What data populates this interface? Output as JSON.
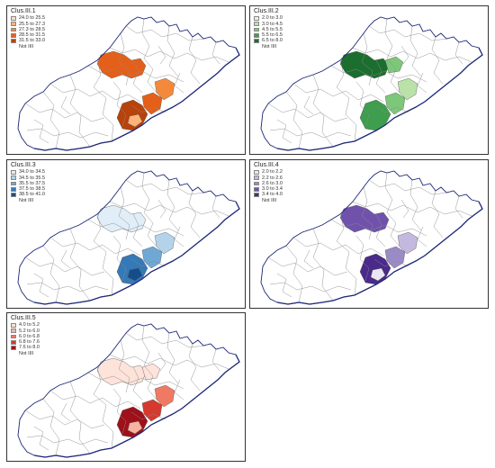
{
  "panels": [
    {
      "title": "Clus.III.1",
      "ramp": "orange",
      "legend": [
        {
          "label": "24.0 to 25.5",
          "color": "#fde0c2"
        },
        {
          "label": "25.5 to 27.3",
          "color": "#fbb47a"
        },
        {
          "label": "27.3 to 28.5",
          "color": "#f5893b"
        },
        {
          "label": "28.5 to 31.5",
          "color": "#e4601a"
        },
        {
          "label": "31.5 to 33.0",
          "color": "#b8420b"
        }
      ],
      "missing_label": "Not IIII",
      "zones": [
        {
          "area": "north",
          "class": 3
        },
        {
          "area": "coast-1",
          "class": 4
        },
        {
          "area": "coast-2",
          "class": 3
        },
        {
          "area": "coast-3",
          "class": 2
        },
        {
          "area": "coast-4",
          "class": 1
        }
      ]
    },
    {
      "title": "Clus.III.2",
      "ramp": "green",
      "legend": [
        {
          "label": "2.0 to 3.0",
          "color": "#e6f4e0"
        },
        {
          "label": "3.0 to 4.5",
          "color": "#b9e1a8"
        },
        {
          "label": "4.5 to 5.5",
          "color": "#7dc77a"
        },
        {
          "label": "5.5 to 6.5",
          "color": "#3e9e4d"
        },
        {
          "label": "6.5 to 8.0",
          "color": "#1b6e2e"
        }
      ],
      "missing_label": "Not IIII",
      "zones": [
        {
          "area": "north",
          "class": 4
        },
        {
          "area": "north-east",
          "class": 2
        },
        {
          "area": "coast-1",
          "class": 3
        },
        {
          "area": "coast-2",
          "class": 2
        },
        {
          "area": "coast-3",
          "class": 1
        }
      ]
    },
    {
      "title": "Clus.III.3",
      "ramp": "blue",
      "legend": [
        {
          "label": "34.0 to 34.5",
          "color": "#e1eef8"
        },
        {
          "label": "34.5 to 35.5",
          "color": "#b4d3ea"
        },
        {
          "label": "35.5 to 37.5",
          "color": "#6fa8d4"
        },
        {
          "label": "37.5 to 38.5",
          "color": "#3579b6"
        },
        {
          "label": "38.5 to 41.0",
          "color": "#154d8a"
        }
      ],
      "missing_label": "Not IIII",
      "zones": [
        {
          "area": "north",
          "class": 0
        },
        {
          "area": "coast-1",
          "class": 3
        },
        {
          "area": "coast-2",
          "class": 2
        },
        {
          "area": "coast-3",
          "class": 1
        },
        {
          "area": "coast-4",
          "class": 4
        }
      ]
    },
    {
      "title": "Clus.III.4",
      "ramp": "purple",
      "legend": [
        {
          "label": "2.0 to 2.2",
          "color": "#ebe6f3"
        },
        {
          "label": "2.2 to 2.6",
          "color": "#c3b9de"
        },
        {
          "label": "2.6 to 3.0",
          "color": "#9a8bc6"
        },
        {
          "label": "3.0 to 3.4",
          "color": "#7052ad"
        },
        {
          "label": "3.4 to 4.0",
          "color": "#4a2a8a"
        }
      ],
      "missing_label": "Not IIII",
      "zones": [
        {
          "area": "north",
          "class": 3
        },
        {
          "area": "coast-1",
          "class": 4
        },
        {
          "area": "coast-2",
          "class": 2
        },
        {
          "area": "coast-3",
          "class": 1
        },
        {
          "area": "coast-4",
          "class": 0
        }
      ]
    },
    {
      "title": "Clus.III.5",
      "ramp": "red",
      "legend": [
        {
          "label": "4.0 to 5.2",
          "color": "#fde3da"
        },
        {
          "label": "5.2 to 6.0",
          "color": "#f9b3a1"
        },
        {
          "label": "6.0 to 6.8",
          "color": "#ef7a63"
        },
        {
          "label": "6.8 to 7.6",
          "color": "#d63a2e"
        },
        {
          "label": "7.6 to 8.0",
          "color": "#9e111b"
        }
      ],
      "missing_label": "Not IIII",
      "zones": [
        {
          "area": "north",
          "class": 0
        },
        {
          "area": "north-east",
          "class": 0
        },
        {
          "area": "coast-1",
          "class": 4
        },
        {
          "area": "coast-2",
          "class": 3
        },
        {
          "area": "coast-3",
          "class": 2
        },
        {
          "area": "coast-4",
          "class": 1
        }
      ]
    }
  ]
}
